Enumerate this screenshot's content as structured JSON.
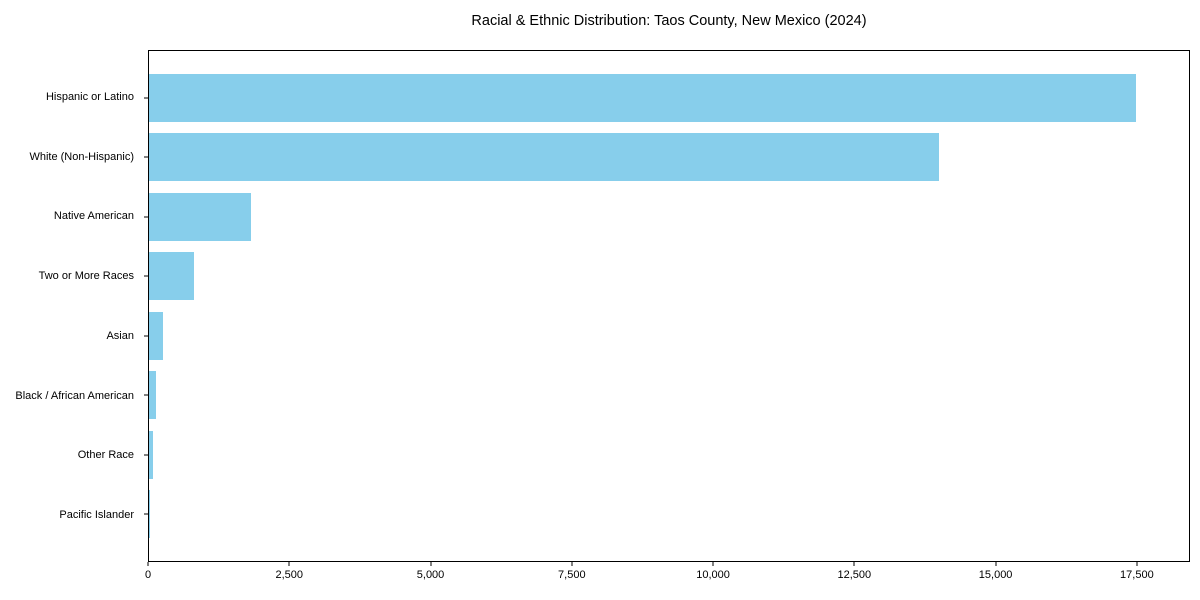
{
  "chart_data": {
    "type": "bar",
    "orientation": "horizontal",
    "title": "Racial & Ethnic Distribution: Taos County, New Mexico (2024)",
    "categories": [
      "Hispanic or Latino",
      "White (Non-Hispanic)",
      "Native American",
      "Two or More Races",
      "Asian",
      "Black / African American",
      "Other Race",
      "Pacific Islander"
    ],
    "values": [
      17500,
      14000,
      1800,
      800,
      250,
      120,
      75,
      20
    ],
    "xlabel": "",
    "ylabel": "",
    "xlim": [
      0,
      18440
    ],
    "xticks": [
      0,
      2500,
      5000,
      7500,
      10000,
      12500,
      15000,
      17500
    ],
    "xtick_labels": [
      "0",
      "2,500",
      "5,000",
      "7,500",
      "10,000",
      "12,500",
      "15,000",
      "17,500"
    ],
    "bar_color": "#87CEEB",
    "axis_color": "#000000",
    "grid": false,
    "legend": null
  }
}
